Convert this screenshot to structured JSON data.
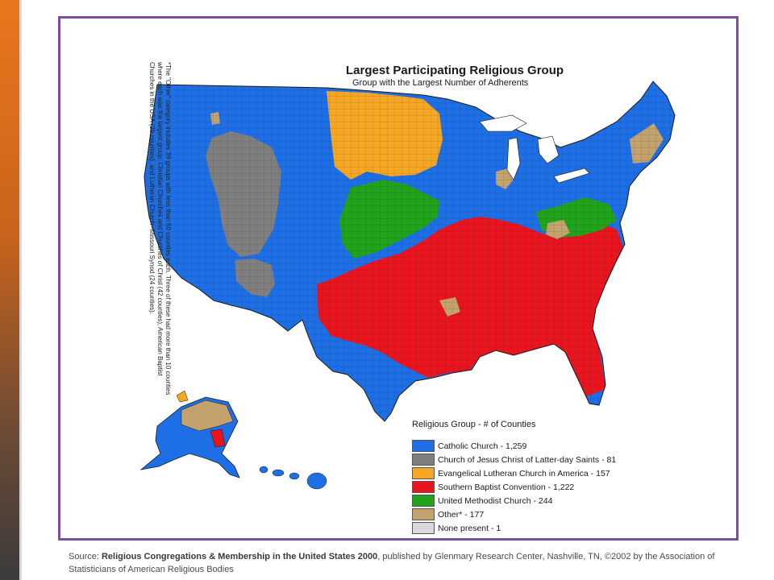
{
  "map": {
    "title": "Largest Participating Religious Group",
    "subtitle": "Group with the Largest Number of Adherents",
    "footnote": "*The \"Other\" category includes 39 groups with less than 50 counties each. Three of these had more than 10 counties where each was the largest group: Christian Churches and Churches of Christ (42 counties), American Baptist Churches in the USA (29 counties), and Lutheran Church--Missouri Synod (24 counties).",
    "colors": {
      "catholic": "#1e6fe6",
      "lds": "#7f7f7f",
      "lutheran": "#f5a623",
      "baptist": "#e8141e",
      "methodist": "#22a31c",
      "other": "#c4a26e",
      "none": "#d9d9d9",
      "ocean": "#ffffff",
      "county_line": "#1a1a1a"
    }
  },
  "legend": {
    "heading": "Religious Group - # of Counties",
    "items": [
      {
        "label": "Catholic Church - 1,259",
        "color": "#1e6fe6",
        "count": 1259
      },
      {
        "label": "Church of Jesus Christ of Latter-day Saints - 81",
        "color": "#7f7f7f",
        "count": 81
      },
      {
        "label": "Evangelical Lutheran Church in America - 157",
        "color": "#f5a623",
        "count": 157
      },
      {
        "label": "Southern Baptist Convention - 1,222",
        "color": "#e8141e",
        "count": 1222
      },
      {
        "label": "United Methodist Church - 244",
        "color": "#22a31c",
        "count": 244
      },
      {
        "label": "Other* - 177",
        "color": "#c4a26e",
        "count": 177
      },
      {
        "label": "None present - 1",
        "color": "#d9d9d9",
        "count": 1
      }
    ]
  },
  "source": {
    "prefix": "Source: ",
    "title": "Religious Congregations & Membership in the United States 2000",
    "rest": ", published by Glenmary Research Center, Nashville, TN, ©2002 by the Association of Statisticians of American Religious Bodies"
  }
}
